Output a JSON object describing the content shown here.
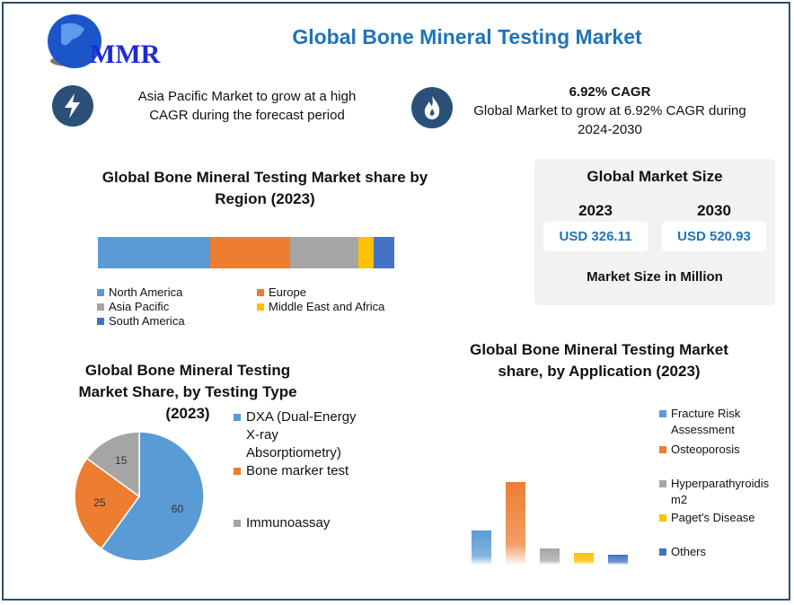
{
  "header": {
    "logo_text": "MMR",
    "title": "Global Bone Mineral Testing Market"
  },
  "highlights": [
    {
      "icon": "lightning-icon",
      "text": "Asia Pacific Market to grow at a high CAGR during the forecast period"
    },
    {
      "icon": "flame-icon",
      "heading": "6.92% CAGR",
      "text": "Global Market to grow at 6.92% CAGR during 2024-2030"
    }
  ],
  "market_size": {
    "title": "Global Market Size",
    "years": [
      "2023",
      "2030"
    ],
    "values": [
      "USD 326.11",
      "USD 520.93"
    ],
    "unit": "Market Size in Million"
  },
  "chart_data": [
    {
      "type": "bar",
      "stacked": true,
      "orientation": "horizontal",
      "title": "Global Bone Mineral Testing Market share by Region (2023)",
      "series": [
        {
          "name": "North America",
          "value": 38,
          "color": "#5b9bd5"
        },
        {
          "name": "Europe",
          "value": 27,
          "color": "#ed7d31"
        },
        {
          "name": "Asia Pacific",
          "value": 23,
          "color": "#a5a5a5"
        },
        {
          "name": "Middle East and Africa",
          "value": 5,
          "color": "#ffc000"
        },
        {
          "name": "South America",
          "value": 7,
          "color": "#4472c4"
        }
      ],
      "legend": "bottom"
    },
    {
      "type": "pie",
      "title": "Global Bone Mineral Testing Market Share, by Testing Type (2023)",
      "slices": [
        {
          "name": "DXA (Dual-Energy X-ray Absorptiometry)",
          "value": 60,
          "color": "#5b9bd5"
        },
        {
          "name": "Bone marker test",
          "value": 25,
          "color": "#ed7d31"
        },
        {
          "name": "Immunoassay",
          "value": 15,
          "color": "#a5a5a5"
        }
      ],
      "legend": "right"
    },
    {
      "type": "bar",
      "title": "Global Bone Mineral Testing Market share, by Application (2023)",
      "categories": [
        "Fracture Risk Assessment",
        "Osteoporosis",
        "Hyperparathyroidism2",
        "Paget's Disease",
        "Others"
      ],
      "values": [
        38,
        92,
        18,
        13,
        11
      ],
      "colors": [
        "#5b9bd5",
        "#ed7d31",
        "#a5a5a5",
        "#ffc000",
        "#4472c4"
      ],
      "legend_labels": [
        "Fracture Risk Assessment",
        "Osteoporosis",
        "Hyperparathyroidis m2",
        "Paget's Disease",
        "Others"
      ],
      "legend": "right"
    }
  ]
}
